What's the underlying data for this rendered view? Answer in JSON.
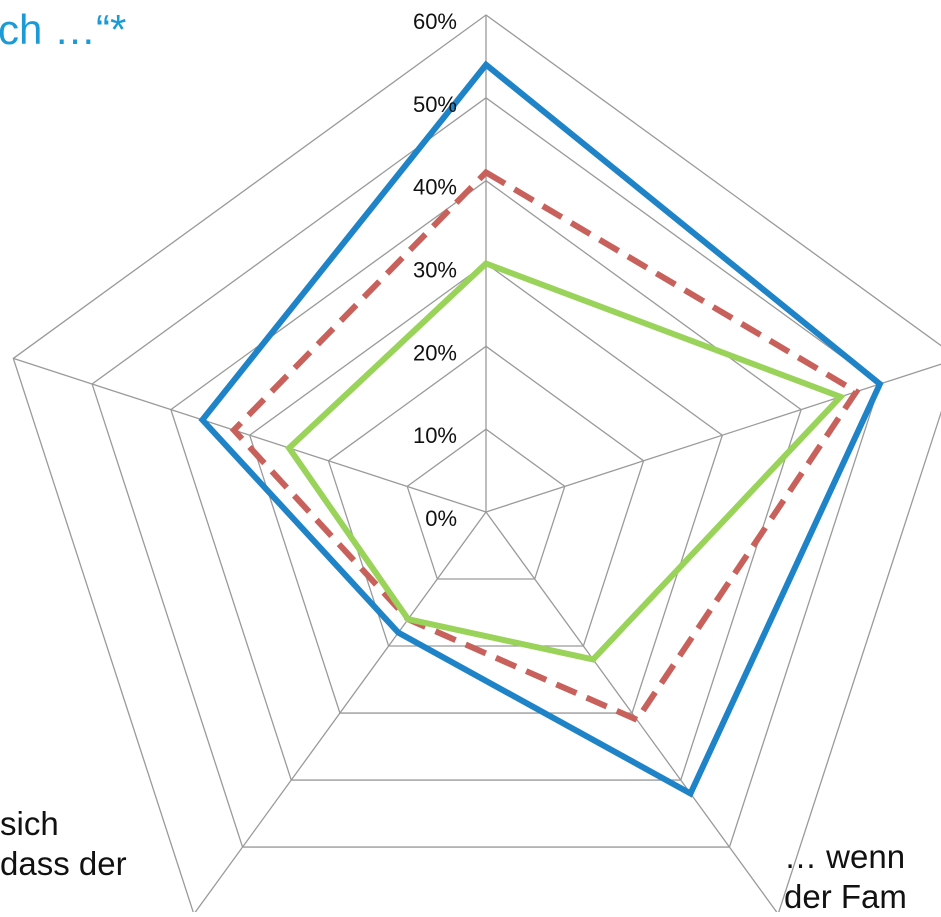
{
  "title": "ch …“*",
  "category_labels": {
    "bottom_left": [
      "sich",
      "dass der"
    ],
    "bottom_right": [
      "… wenn",
      "der Fam"
    ]
  },
  "chart_data": {
    "type": "radar",
    "title": "ch …“*",
    "axis_tick_labels": [
      "0%",
      "10%",
      "20%",
      "30%",
      "40%",
      "50%",
      "60%"
    ],
    "rlim": [
      0,
      60
    ],
    "grid": true,
    "categories": [
      "",
      "",
      "… wenn der Fam",
      "sich … dass der",
      ""
    ],
    "series": [
      {
        "color": "#1f83c8",
        "style": "solid",
        "values": [
          54,
          50,
          42,
          18,
          36
        ]
      },
      {
        "color": "#c8615b",
        "style": "dashed",
        "values": [
          41,
          47,
          31,
          16,
          32
        ]
      },
      {
        "color": "#9ad35a",
        "style": "solid",
        "values": [
          30,
          45,
          22,
          16,
          25
        ]
      }
    ]
  }
}
